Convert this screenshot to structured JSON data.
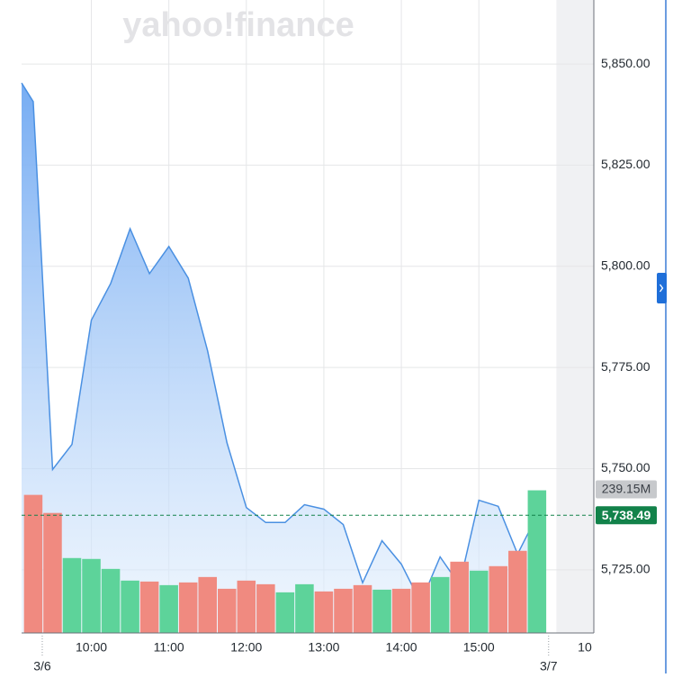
{
  "watermark": "yahoo!finance",
  "chart_data": [
    {
      "type": "line",
      "color": "#4a90e2",
      "x": [
        "09:06",
        "09:15",
        "09:30",
        "09:45",
        "10:00",
        "10:15",
        "10:30",
        "10:45",
        "11:00",
        "11:15",
        "11:30",
        "11:45",
        "12:00",
        "12:15",
        "12:30",
        "12:45",
        "13:00",
        "13:15",
        "13:30",
        "13:45",
        "14:00",
        "14:15",
        "14:30",
        "14:45",
        "15:00",
        "15:15",
        "15:30",
        "15:45"
      ],
      "values": [
        5845.3,
        5840.7,
        5749.8,
        5756,
        5786.7,
        5795.8,
        5809.3,
        5798.2,
        5804.9,
        5797.1,
        5779.1,
        5756.4,
        5740.4,
        5736.7,
        5736.7,
        5741.1,
        5740,
        5736.2,
        5721.8,
        5732.2,
        5726.4,
        5716.9,
        5728.2,
        5721.3,
        5742.2,
        5740.7,
        5728.9,
        5738.4
      ],
      "xlim": [
        "09:06",
        "16:29"
      ],
      "xticks": [
        "10:00",
        "11:00",
        "12:00",
        "13:00",
        "14:00",
        "15:00",
        {
          "value": "16:22",
          "label": "10"
        }
      ],
      "date_ticks": [
        {
          "value": "09:22",
          "label": "3/6"
        },
        {
          "value": "15:54",
          "label": "3/7"
        }
      ],
      "after_hours_start": "16:00",
      "ylim": [
        5709.4,
        5864.7
      ],
      "yticks": [
        {
          "value": 5725,
          "label": "5,725.00"
        },
        {
          "value": 5750,
          "label": "5,750.00"
        },
        {
          "value": 5775,
          "label": "5,775.00"
        },
        {
          "value": 5800,
          "label": "5,800.00"
        },
        {
          "value": 5825,
          "label": "5,825.00"
        },
        {
          "value": 5850,
          "label": "5,850.00"
        }
      ],
      "grid": true,
      "last_price": {
        "value": 5738.49,
        "label": "5,738.49",
        "color": "#12824a"
      }
    },
    {
      "type": "bar",
      "x": [
        "09:15",
        "09:30",
        "09:45",
        "10:00",
        "10:15",
        "10:30",
        "10:45",
        "11:00",
        "11:15",
        "11:30",
        "11:45",
        "12:00",
        "12:15",
        "12:30",
        "12:45",
        "13:00",
        "13:15",
        "13:30",
        "13:45",
        "14:00",
        "14:15",
        "14:30",
        "14:45",
        "15:00",
        "15:15",
        "15:30",
        "15:45"
      ],
      "values": [
        231.5,
        201.2,
        125.6,
        124.1,
        107.4,
        87.8,
        86.2,
        80.2,
        84.7,
        93.8,
        74.1,
        87.8,
        81.7,
        68.1,
        81.7,
        69.6,
        74.1,
        80.2,
        72.6,
        74.1,
        84.7,
        93.8,
        119.5,
        104.4,
        112,
        137.7,
        239.15
      ],
      "value_labels": [
        null,
        null,
        null,
        null,
        null,
        null,
        null,
        null,
        null,
        null,
        null,
        null,
        null,
        null,
        null,
        null,
        null,
        null,
        null,
        null,
        null,
        null,
        null,
        null,
        null,
        null,
        "239.15M"
      ],
      "colors": [
        "#f08a80",
        "#f08a80",
        "#5dd39a",
        "#5dd39a",
        "#5dd39a",
        "#5dd39a",
        "#f08a80",
        "#5dd39a",
        "#f08a80",
        "#f08a80",
        "#f08a80",
        "#f08a80",
        "#f08a80",
        "#5dd39a",
        "#5dd39a",
        "#f08a80",
        "#f08a80",
        "#f08a80",
        "#5dd39a",
        "#f08a80",
        "#f08a80",
        "#5dd39a",
        "#f08a80",
        "#5dd39a",
        "#f08a80",
        "#f08a80",
        "#5dd39a"
      ]
    }
  ]
}
